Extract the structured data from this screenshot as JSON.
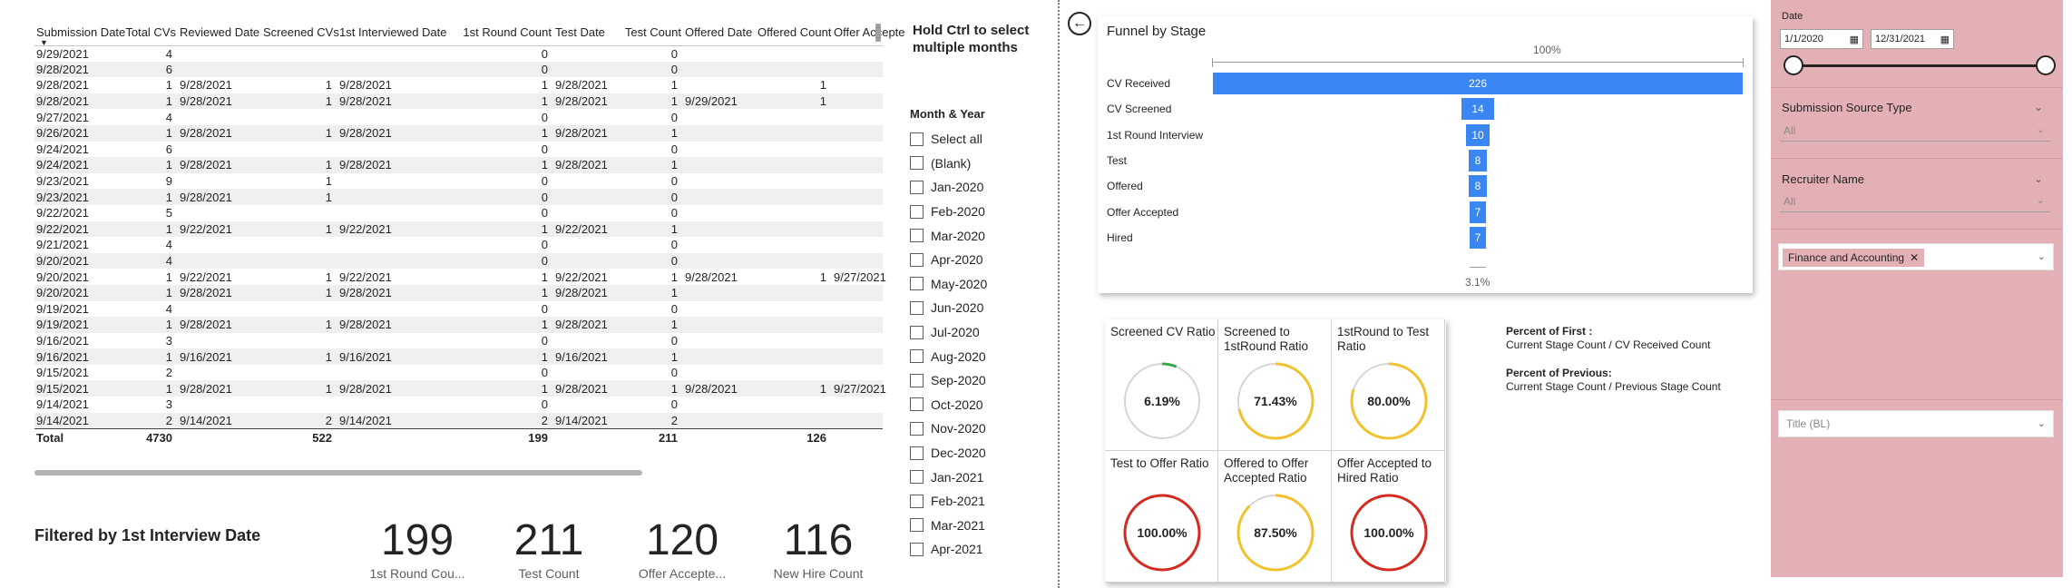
{
  "table": {
    "columns": [
      "Submission Date",
      "Total CVs",
      "Reviewed Date",
      "Screened CVs",
      "1st Interviewed Date",
      "1st Round Count",
      "Test Date",
      "Test Count",
      "Offered Date",
      "Offered Count",
      "Offer Accepte"
    ],
    "rows": [
      [
        "9/29/2021",
        "4",
        "",
        "",
        "",
        "0",
        "",
        "0",
        "",
        "",
        ""
      ],
      [
        "9/28/2021",
        "6",
        "",
        "",
        "",
        "0",
        "",
        "0",
        "",
        "",
        ""
      ],
      [
        "9/28/2021",
        "1",
        "9/28/2021",
        "1",
        "9/28/2021",
        "1",
        "9/28/2021",
        "1",
        "",
        "1",
        ""
      ],
      [
        "9/28/2021",
        "1",
        "9/28/2021",
        "1",
        "9/28/2021",
        "1",
        "9/28/2021",
        "1",
        "9/29/2021",
        "1",
        ""
      ],
      [
        "9/27/2021",
        "4",
        "",
        "",
        "",
        "0",
        "",
        "0",
        "",
        "",
        ""
      ],
      [
        "9/26/2021",
        "1",
        "9/28/2021",
        "1",
        "9/28/2021",
        "1",
        "9/28/2021",
        "1",
        "",
        "",
        ""
      ],
      [
        "9/24/2021",
        "6",
        "",
        "",
        "",
        "0",
        "",
        "0",
        "",
        "",
        ""
      ],
      [
        "9/24/2021",
        "1",
        "9/28/2021",
        "1",
        "9/28/2021",
        "1",
        "9/28/2021",
        "1",
        "",
        "",
        ""
      ],
      [
        "9/23/2021",
        "9",
        "",
        "1",
        "",
        "0",
        "",
        "0",
        "",
        "",
        ""
      ],
      [
        "9/23/2021",
        "1",
        "9/28/2021",
        "1",
        "",
        "0",
        "",
        "0",
        "",
        "",
        ""
      ],
      [
        "9/22/2021",
        "5",
        "",
        "",
        "",
        "0",
        "",
        "0",
        "",
        "",
        ""
      ],
      [
        "9/22/2021",
        "1",
        "9/22/2021",
        "1",
        "9/22/2021",
        "1",
        "9/22/2021",
        "1",
        "",
        "",
        ""
      ],
      [
        "9/21/2021",
        "4",
        "",
        "",
        "",
        "0",
        "",
        "0",
        "",
        "",
        ""
      ],
      [
        "9/20/2021",
        "4",
        "",
        "",
        "",
        "0",
        "",
        "0",
        "",
        "",
        ""
      ],
      [
        "9/20/2021",
        "1",
        "9/22/2021",
        "1",
        "9/22/2021",
        "1",
        "9/22/2021",
        "1",
        "9/28/2021",
        "1",
        "9/27/2021"
      ],
      [
        "9/20/2021",
        "1",
        "9/28/2021",
        "1",
        "9/28/2021",
        "1",
        "9/28/2021",
        "1",
        "",
        "",
        ""
      ],
      [
        "9/19/2021",
        "4",
        "",
        "",
        "",
        "0",
        "",
        "0",
        "",
        "",
        ""
      ],
      [
        "9/19/2021",
        "1",
        "9/28/2021",
        "1",
        "9/28/2021",
        "1",
        "9/28/2021",
        "1",
        "",
        "",
        ""
      ],
      [
        "9/16/2021",
        "3",
        "",
        "",
        "",
        "0",
        "",
        "0",
        "",
        "",
        ""
      ],
      [
        "9/16/2021",
        "1",
        "9/16/2021",
        "1",
        "9/16/2021",
        "1",
        "9/16/2021",
        "1",
        "",
        "",
        ""
      ],
      [
        "9/15/2021",
        "2",
        "",
        "",
        "",
        "0",
        "",
        "0",
        "",
        "",
        ""
      ],
      [
        "9/15/2021",
        "1",
        "9/28/2021",
        "1",
        "9/28/2021",
        "1",
        "9/28/2021",
        "1",
        "9/28/2021",
        "1",
        "9/27/2021"
      ],
      [
        "9/14/2021",
        "3",
        "",
        "",
        "",
        "0",
        "",
        "0",
        "",
        "",
        ""
      ],
      [
        "9/14/2021",
        "2",
        "9/14/2021",
        "2",
        "9/14/2021",
        "2",
        "9/14/2021",
        "2",
        "",
        "",
        ""
      ]
    ],
    "total": [
      "Total",
      "4730",
      "",
      "522",
      "",
      "199",
      "",
      "211",
      "",
      "126",
      ""
    ]
  },
  "filter_note": "Filtered by 1st Interview Date",
  "kpis": [
    {
      "value": "199",
      "label": "1st Round Cou..."
    },
    {
      "value": "211",
      "label": "Test Count"
    },
    {
      "value": "120",
      "label": "Offer Accepte..."
    },
    {
      "value": "116",
      "label": "New Hire Count"
    }
  ],
  "month_slicer": {
    "hint": "Hold Ctrl to select multiple months",
    "title": "Month & Year",
    "items": [
      "Select all",
      "(Blank)",
      "Jan-2020",
      "Feb-2020",
      "Mar-2020",
      "Apr-2020",
      "May-2020",
      "Jun-2020",
      "Jul-2020",
      "Aug-2020",
      "Sep-2020",
      "Oct-2020",
      "Nov-2020",
      "Dec-2020",
      "Jan-2021",
      "Feb-2021",
      "Mar-2021",
      "Apr-2021"
    ]
  },
  "funnel": {
    "title": "Funnel by Stage",
    "top_pct": "100%",
    "bottom_pct": "3.1%",
    "stages": [
      {
        "label": "CV Received",
        "value": 226
      },
      {
        "label": "CV Screened",
        "value": 14
      },
      {
        "label": "1st Round Interview",
        "value": 10
      },
      {
        "label": "Test",
        "value": 8
      },
      {
        "label": "Offered",
        "value": 8
      },
      {
        "label": "Offer Accepted",
        "value": 7
      },
      {
        "label": "Hired",
        "value": 7
      }
    ],
    "bar_color": "#3a86f2"
  },
  "gauges": [
    {
      "title": "Screened CV Ratio",
      "value": "6.19%",
      "fraction": 0.0619,
      "color": "#3aa84a"
    },
    {
      "title": "Screened to 1stRound Ratio",
      "value": "71.43%",
      "fraction": 0.7143,
      "color": "#f2c12e"
    },
    {
      "title": "1stRound to Test Ratio",
      "value": "80.00%",
      "fraction": 0.8,
      "color": "#f2c12e"
    },
    {
      "title": "Test to Offer Ratio",
      "value": "100.00%",
      "fraction": 1.0,
      "color": "#d42a1f"
    },
    {
      "title": "Offered to Offer Accepted Ratio",
      "value": "87.50%",
      "fraction": 0.875,
      "color": "#f2c12e"
    },
    {
      "title": "Offer Accepted to Hired Ratio",
      "value": "100.00%",
      "fraction": 1.0,
      "color": "#d42a1f"
    }
  ],
  "notes": {
    "first_heading": "Percent of First :",
    "first_text": "Current Stage Count / CV Received Count",
    "prev_heading": "Percent of Previous:",
    "prev_text": "Current Stage Count / Previous Stage Count"
  },
  "filter_pane": {
    "date_label": "Date",
    "date_start": "1/1/2020",
    "date_end": "12/31/2021",
    "source_title": "Submission Source Type",
    "source_value": "All",
    "recruiter_title": "Recruiter Name",
    "recruiter_value": "All",
    "dept_pill": "Finance and Accounting",
    "title_placeholder": "Title (BL)",
    "pane_color": "#e3b0b5"
  }
}
